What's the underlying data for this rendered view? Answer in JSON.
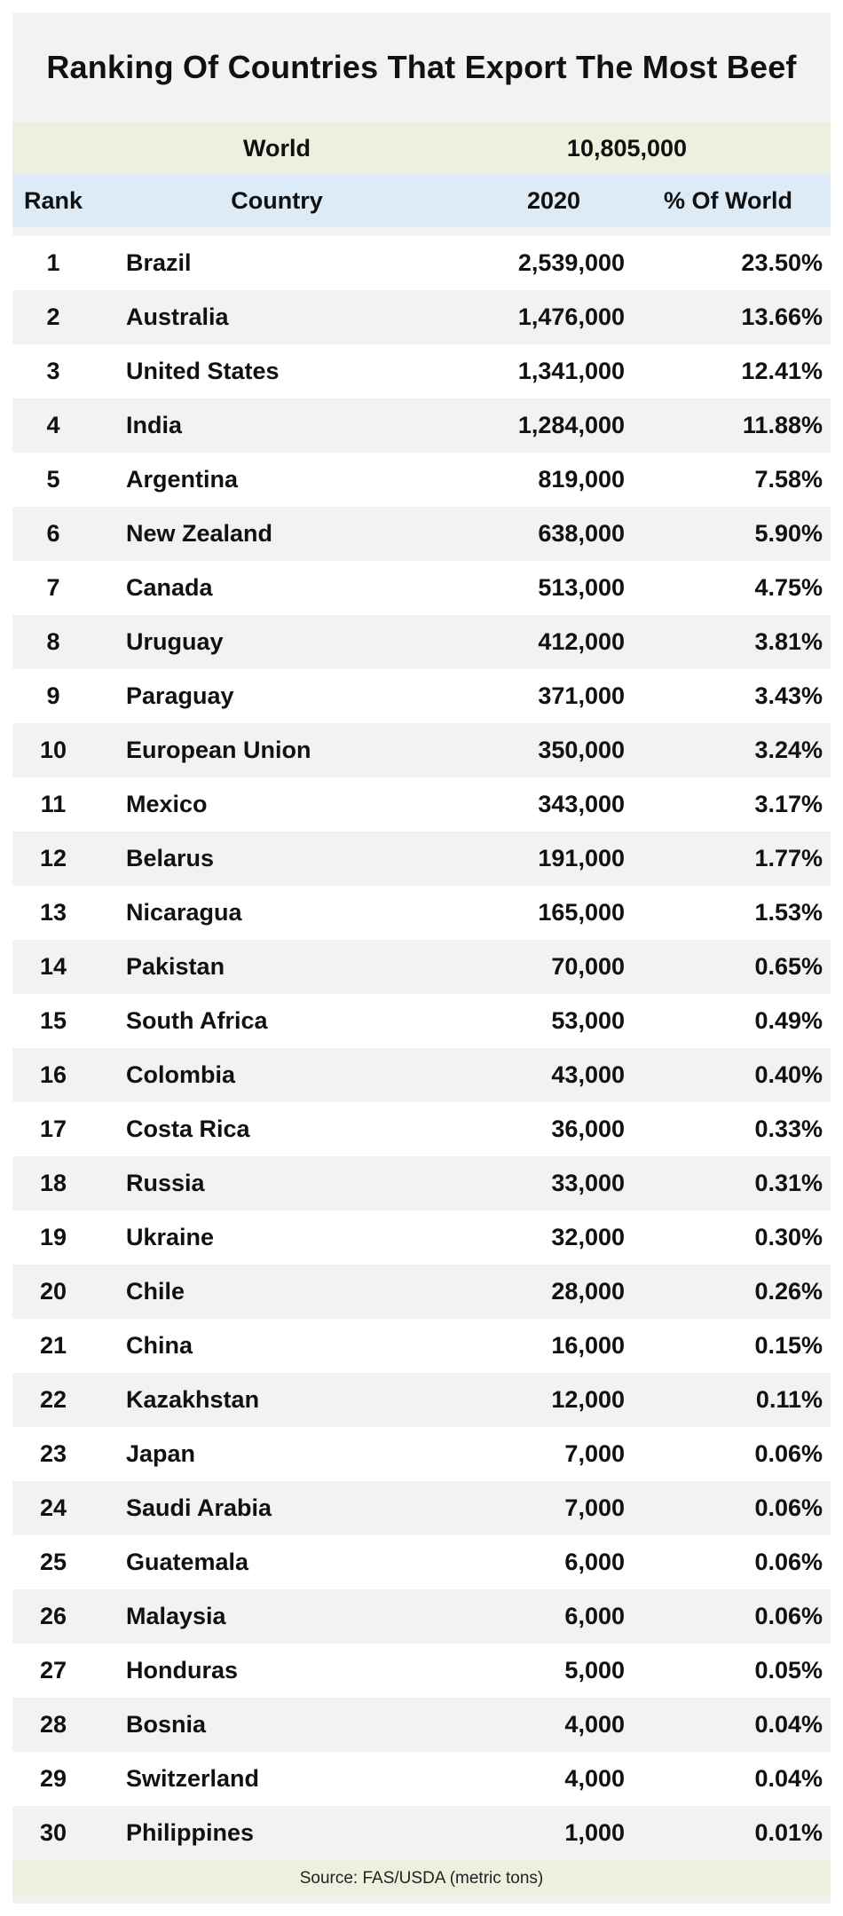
{
  "title": "Ranking Of Countries That Export The Most Beef",
  "world": {
    "label": "World",
    "value": "10,805,000"
  },
  "headers": {
    "rank": "Rank",
    "country": "Country",
    "year": "2020",
    "pct": "% Of World"
  },
  "source": "Source:  FAS/USDA (metric tons)",
  "chart_data": {
    "type": "table",
    "title": "Ranking Of Countries That Export The Most Beef",
    "columns": [
      "Rank",
      "Country",
      "2020",
      "% Of World"
    ],
    "rows": [
      [
        "1",
        "Brazil",
        "2,539,000",
        "23.50%"
      ],
      [
        "2",
        "Australia",
        "1,476,000",
        "13.66%"
      ],
      [
        "3",
        "United States",
        "1,341,000",
        "12.41%"
      ],
      [
        "4",
        "India",
        "1,284,000",
        "11.88%"
      ],
      [
        "5",
        "Argentina",
        "819,000",
        "7.58%"
      ],
      [
        "6",
        "New Zealand",
        "638,000",
        "5.90%"
      ],
      [
        "7",
        "Canada",
        "513,000",
        "4.75%"
      ],
      [
        "8",
        "Uruguay",
        "412,000",
        "3.81%"
      ],
      [
        "9",
        "Paraguay",
        "371,000",
        "3.43%"
      ],
      [
        "10",
        "European Union",
        "350,000",
        "3.24%"
      ],
      [
        "11",
        "Mexico",
        "343,000",
        "3.17%"
      ],
      [
        "12",
        "Belarus",
        "191,000",
        "1.77%"
      ],
      [
        "13",
        "Nicaragua",
        "165,000",
        "1.53%"
      ],
      [
        "14",
        "Pakistan",
        "70,000",
        "0.65%"
      ],
      [
        "15",
        "South Africa",
        "53,000",
        "0.49%"
      ],
      [
        "16",
        "Colombia",
        "43,000",
        "0.40%"
      ],
      [
        "17",
        "Costa Rica",
        "36,000",
        "0.33%"
      ],
      [
        "18",
        "Russia",
        "33,000",
        "0.31%"
      ],
      [
        "19",
        "Ukraine",
        "32,000",
        "0.30%"
      ],
      [
        "20",
        "Chile",
        "28,000",
        "0.26%"
      ],
      [
        "21",
        "China",
        "16,000",
        "0.15%"
      ],
      [
        "22",
        "Kazakhstan",
        "12,000",
        "0.11%"
      ],
      [
        "23",
        "Japan",
        "7,000",
        "0.06%"
      ],
      [
        "24",
        "Saudi Arabia",
        "7,000",
        "0.06%"
      ],
      [
        "25",
        "Guatemala",
        "6,000",
        "0.06%"
      ],
      [
        "26",
        "Malaysia",
        "6,000",
        "0.06%"
      ],
      [
        "27",
        "Honduras",
        "5,000",
        "0.05%"
      ],
      [
        "28",
        "Bosnia",
        "4,000",
        "0.04%"
      ],
      [
        "29",
        "Switzerland",
        "4,000",
        "0.04%"
      ],
      [
        "30",
        "Philippines",
        "1,000",
        "0.01%"
      ]
    ]
  }
}
